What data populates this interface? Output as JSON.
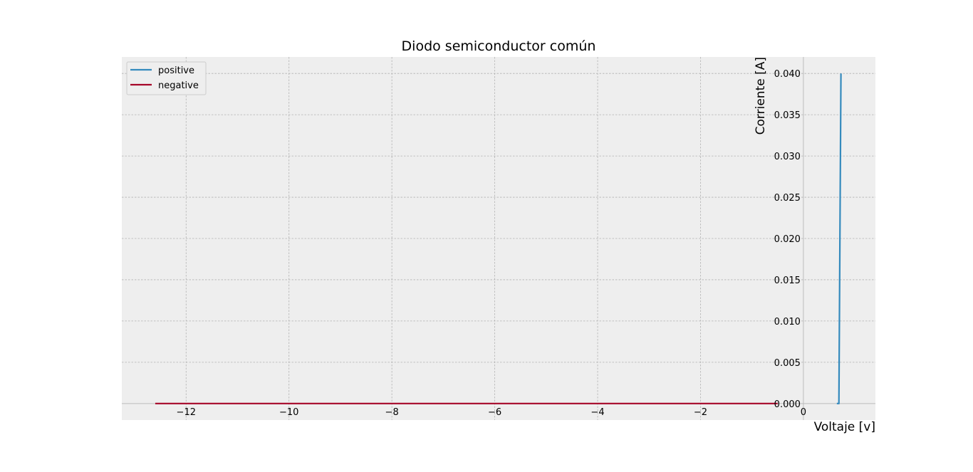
{
  "chart_data": {
    "type": "line",
    "title": "Diodo semiconductor común",
    "xlabel": "Voltaje [v]",
    "ylabel": "Corriente [A]",
    "xlim": [
      -13.25,
      1.4
    ],
    "ylim": [
      -0.002,
      0.042
    ],
    "x_ticks": [
      -12,
      -10,
      -8,
      -6,
      -4,
      -2,
      0
    ],
    "y_ticks": [
      0.0,
      0.005,
      0.01,
      0.015,
      0.02,
      0.025,
      0.03,
      0.035,
      0.04
    ],
    "grid": true,
    "legend_position": "upper-left",
    "series": [
      {
        "name": "positive",
        "color": "#348ABD",
        "x": [
          0.65,
          0.67,
          0.69,
          0.71,
          0.73
        ],
        "y": [
          0.0,
          0.0,
          0.0,
          0.02,
          0.04
        ]
      },
      {
        "name": "negative",
        "color": "#A60628",
        "x": [
          -12.6,
          -10,
          -8,
          -6,
          -4,
          -2,
          -0.5
        ],
        "y": [
          0.0,
          0.0,
          0.0,
          0.0,
          0.0,
          0.0,
          0.0
        ]
      }
    ]
  }
}
